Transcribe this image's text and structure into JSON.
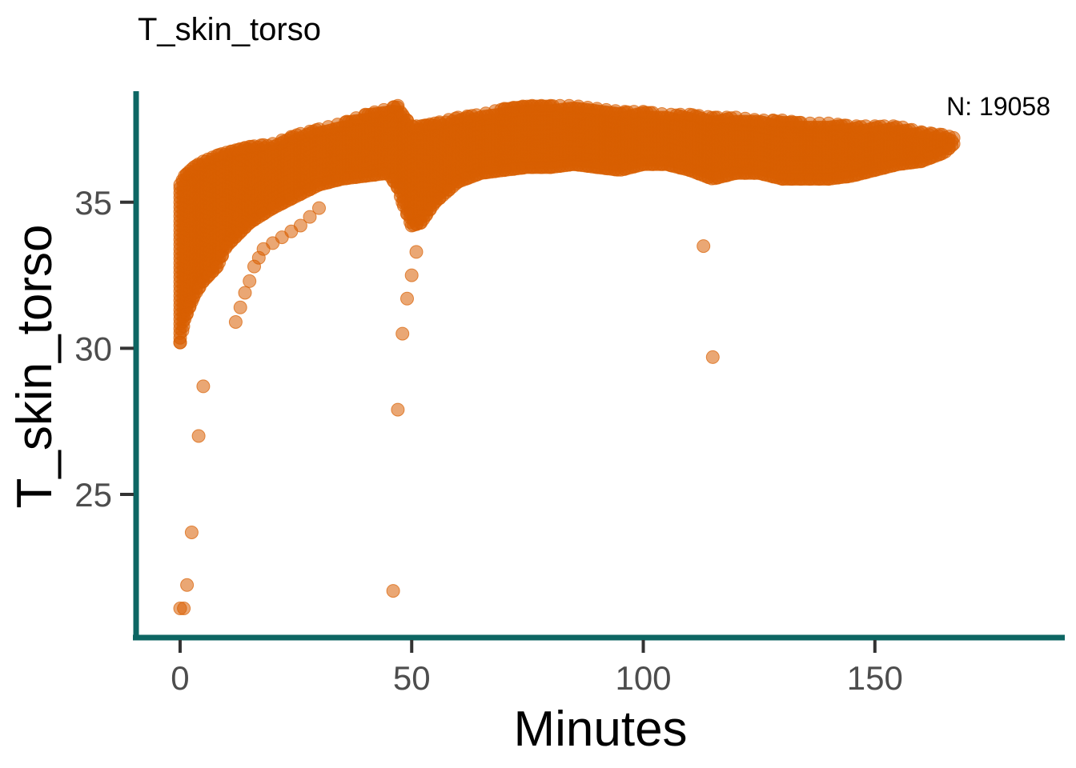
{
  "chart_data": {
    "type": "scatter",
    "title": "T_skin_torso",
    "xlabel": "Minutes",
    "ylabel": "T_skin_torso",
    "annotation": "N: 19058",
    "xlim": [
      -9.5,
      191
    ],
    "ylim": [
      20.1,
      38.8
    ],
    "xticks": [
      0,
      50,
      100,
      150
    ],
    "xtick_labels": [
      "0",
      "50",
      "100",
      "150"
    ],
    "yticks": [
      25,
      30,
      35
    ],
    "ytick_labels": [
      "25",
      "30",
      "35"
    ],
    "grid": false,
    "legend": "none",
    "colors": {
      "points": "#d95f02",
      "axis": "#0d6663",
      "ticks": "#333333",
      "tick_labels": "#4d4d4d"
    },
    "series": [
      {
        "upper_envelope": {
          "x": [
            0,
            1,
            3,
            5,
            8,
            10,
            15,
            20,
            25,
            30,
            35,
            40,
            45,
            47,
            48,
            50,
            52,
            55,
            60,
            65,
            70,
            75,
            80,
            85,
            90,
            95,
            100,
            105,
            110,
            115,
            120,
            125,
            130,
            135,
            140,
            145,
            150,
            155,
            160,
            165,
            167
          ],
          "y": [
            35.6,
            35.9,
            36.2,
            36.4,
            36.6,
            36.7,
            36.9,
            37.0,
            37.3,
            37.5,
            37.7,
            38.0,
            38.2,
            38.3,
            38.0,
            37.6,
            37.6,
            37.7,
            37.9,
            38.0,
            38.2,
            38.3,
            38.3,
            38.3,
            38.2,
            38.1,
            38.1,
            38.0,
            38.0,
            37.9,
            37.9,
            37.8,
            37.8,
            37.7,
            37.7,
            37.6,
            37.6,
            37.6,
            37.4,
            37.3,
            37.2
          ]
        },
        "lower_envelope": {
          "x": [
            0,
            1,
            3,
            5,
            8,
            10,
            15,
            20,
            25,
            30,
            35,
            40,
            45,
            47,
            48,
            50,
            52,
            55,
            60,
            65,
            70,
            75,
            80,
            85,
            90,
            95,
            100,
            105,
            110,
            115,
            120,
            125,
            130,
            135,
            140,
            145,
            150,
            155,
            160,
            165,
            167
          ],
          "y": [
            30.2,
            31.0,
            31.8,
            32.3,
            32.8,
            33.5,
            34.3,
            34.8,
            35.2,
            35.6,
            35.8,
            35.9,
            36.0,
            35.5,
            35.0,
            34.2,
            34.3,
            35.0,
            35.7,
            36.0,
            36.1,
            36.2,
            36.2,
            36.3,
            36.2,
            36.1,
            36.3,
            36.3,
            36.1,
            35.8,
            36.0,
            36.0,
            35.8,
            35.8,
            35.8,
            35.9,
            36.1,
            36.3,
            36.4,
            36.7,
            37.0
          ]
        },
        "point_x": [
          0,
          0.5,
          1,
          1.5,
          2,
          2.5,
          3,
          4,
          5,
          6,
          7,
          8,
          9,
          10,
          11,
          12,
          13,
          14,
          15,
          16,
          18,
          20,
          22,
          24,
          26,
          28,
          30,
          32,
          34,
          36,
          38,
          40,
          42,
          44,
          46,
          47,
          48,
          49,
          50,
          51,
          52,
          53,
          54,
          55,
          56,
          58,
          60,
          62,
          64,
          66,
          68,
          70,
          72,
          74,
          76,
          78,
          80,
          82,
          84,
          86,
          88,
          90,
          92,
          94,
          96,
          98,
          100,
          102,
          104,
          106,
          108,
          110,
          112,
          114,
          116,
          118,
          120,
          122,
          124,
          126,
          128,
          130,
          132,
          134,
          136,
          138,
          140,
          142,
          144,
          146,
          148,
          150,
          152,
          154,
          156,
          158,
          160,
          162,
          164,
          166,
          167
        ],
        "outliers": {
          "x": [
            0,
            0.8,
            1.5,
            2.5,
            4,
            5,
            46,
            47,
            48,
            49,
            50,
            51,
            113,
            115,
            12,
            13,
            14,
            15,
            16,
            17,
            18,
            20,
            22,
            24,
            26,
            28,
            30
          ],
          "y": [
            21.1,
            21.1,
            21.9,
            23.7,
            27.0,
            28.7,
            21.7,
            27.9,
            30.5,
            31.7,
            32.5,
            33.3,
            33.5,
            29.7,
            30.9,
            31.4,
            31.9,
            32.3,
            32.8,
            33.1,
            33.4,
            33.6,
            33.8,
            34.0,
            34.2,
            34.5,
            34.8
          ]
        }
      }
    ]
  }
}
